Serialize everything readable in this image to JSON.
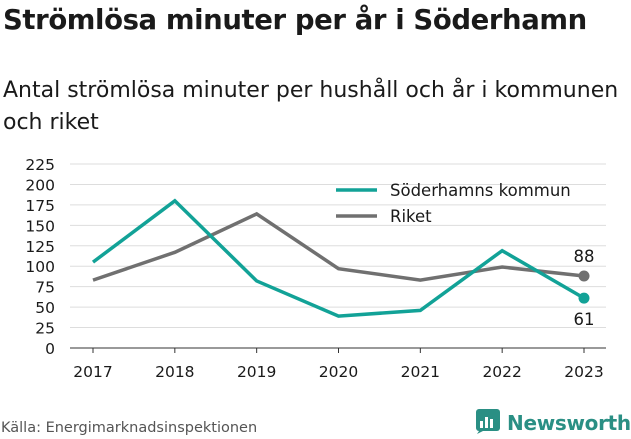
{
  "header": {
    "title": "Strömlösa minuter per år i Söderhamn",
    "subtitle": "Antal strömlösa minuter per hushåll och år i kommunen och riket"
  },
  "footer": {
    "source": "Källa: Energimarknadsinspektionen",
    "brand": "Newsworthy",
    "brand_icon": "newsworthy-logo-icon"
  },
  "colors": {
    "kommun": "#12a297",
    "riket": "#707070",
    "grid": "#dddddd",
    "text": "#1a1a1a",
    "brand": "#2a8f84"
  },
  "chart_data": {
    "type": "line",
    "x": [
      "2017",
      "2018",
      "2019",
      "2020",
      "2021",
      "2022",
      "2023"
    ],
    "series": [
      {
        "name": "Söderhamns kommun",
        "values": [
          105,
          180,
          82,
          39,
          46,
          119,
          61
        ]
      },
      {
        "name": "Riket",
        "values": [
          83,
          117,
          164,
          97,
          83,
          99,
          88
        ]
      }
    ],
    "ylim": [
      0,
      225
    ],
    "yticks": [
      0,
      25,
      50,
      75,
      100,
      125,
      150,
      175,
      200,
      225
    ],
    "grid": true,
    "legend": "top-right",
    "end_labels": {
      "Söderhamns kommun": "61",
      "Riket": "88"
    }
  }
}
